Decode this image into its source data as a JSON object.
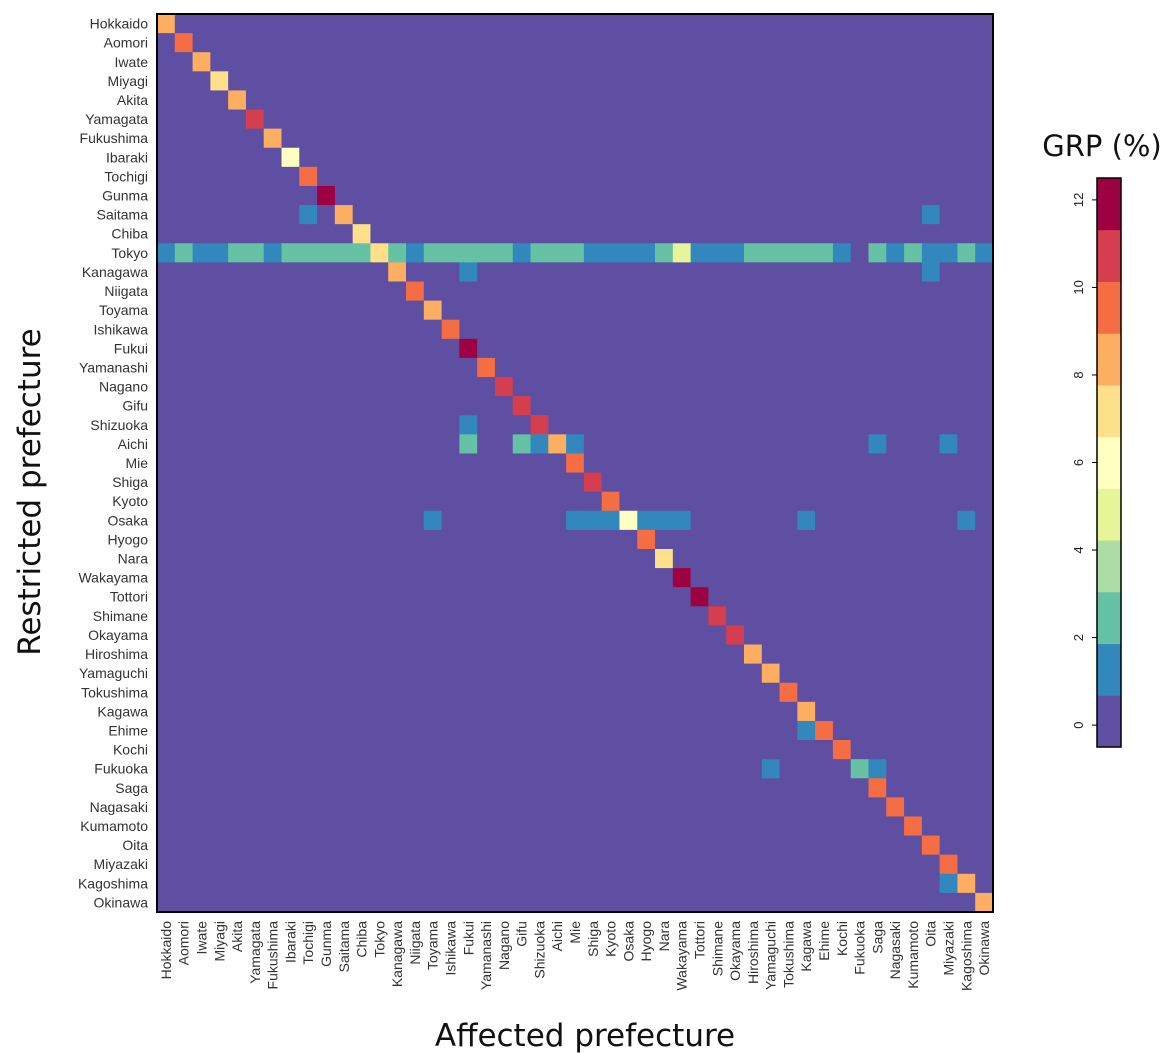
{
  "chart_data": {
    "type": "heatmap",
    "xlabel": "Affected prefecture",
    "ylabel": "Restricted prefecture",
    "colorbar_title": "GRP (%)",
    "colorbar_ticks": [
      0,
      2,
      4,
      6,
      8,
      10,
      12
    ],
    "value_range": [
      -0.5,
      12.5
    ],
    "prefectures": [
      "Hokkaido",
      "Aomori",
      "Iwate",
      "Miyagi",
      "Akita",
      "Yamagata",
      "Fukushima",
      "Ibaraki",
      "Tochigi",
      "Gunma",
      "Saitama",
      "Chiba",
      "Tokyo",
      "Kanagawa",
      "Niigata",
      "Toyama",
      "Ishikawa",
      "Fukui",
      "Yamanashi",
      "Nagano",
      "Gifu",
      "Shizuoka",
      "Aichi",
      "Mie",
      "Shiga",
      "Kyoto",
      "Osaka",
      "Hyogo",
      "Nara",
      "Wakayama",
      "Tottori",
      "Shimane",
      "Okayama",
      "Hiroshima",
      "Yamaguchi",
      "Tokushima",
      "Kagawa",
      "Ehime",
      "Kochi",
      "Fukuoka",
      "Saga",
      "Nagasaki",
      "Kumamoto",
      "Oita",
      "Miyazaki",
      "Kagoshima",
      "Okinawa"
    ],
    "background_value": 0,
    "cells": [
      [
        0,
        0,
        8.5
      ],
      [
        1,
        1,
        9.5
      ],
      [
        2,
        2,
        8.5
      ],
      [
        3,
        3,
        7
      ],
      [
        4,
        4,
        8.5
      ],
      [
        5,
        5,
        10.5
      ],
      [
        6,
        6,
        8.5
      ],
      [
        7,
        7,
        6
      ],
      [
        8,
        8,
        9.5
      ],
      [
        9,
        9,
        12
      ],
      [
        10,
        8,
        1
      ],
      [
        10,
        10,
        8.5
      ],
      [
        10,
        43,
        1
      ],
      [
        11,
        11,
        7
      ],
      [
        12,
        0,
        1
      ],
      [
        12,
        1,
        2
      ],
      [
        12,
        2,
        1
      ],
      [
        12,
        3,
        1
      ],
      [
        12,
        4,
        2
      ],
      [
        12,
        5,
        2
      ],
      [
        12,
        6,
        1
      ],
      [
        12,
        7,
        2
      ],
      [
        12,
        8,
        2
      ],
      [
        12,
        9,
        3
      ],
      [
        12,
        10,
        3
      ],
      [
        12,
        11,
        2
      ],
      [
        12,
        12,
        7
      ],
      [
        12,
        13,
        2
      ],
      [
        12,
        14,
        1
      ],
      [
        12,
        15,
        2
      ],
      [
        12,
        16,
        2
      ],
      [
        12,
        17,
        2
      ],
      [
        12,
        18,
        2
      ],
      [
        12,
        19,
        2
      ],
      [
        12,
        20,
        1
      ],
      [
        12,
        21,
        2
      ],
      [
        12,
        22,
        2
      ],
      [
        12,
        23,
        2
      ],
      [
        12,
        24,
        1
      ],
      [
        12,
        25,
        1
      ],
      [
        12,
        26,
        1
      ],
      [
        12,
        27,
        1
      ],
      [
        12,
        28,
        3
      ],
      [
        12,
        29,
        5
      ],
      [
        12,
        30,
        1
      ],
      [
        12,
        31,
        1
      ],
      [
        12,
        32,
        1
      ],
      [
        12,
        33,
        2
      ],
      [
        12,
        34,
        2
      ],
      [
        12,
        35,
        2
      ],
      [
        12,
        36,
        2
      ],
      [
        12,
        37,
        3
      ],
      [
        12,
        38,
        1
      ],
      [
        12,
        39,
        0
      ],
      [
        12,
        40,
        2
      ],
      [
        12,
        41,
        1
      ],
      [
        12,
        42,
        2
      ],
      [
        12,
        43,
        1
      ],
      [
        12,
        44,
        1
      ],
      [
        12,
        45,
        2
      ],
      [
        12,
        46,
        1
      ],
      [
        13,
        13,
        8.5
      ],
      [
        13,
        17,
        1
      ],
      [
        13,
        43,
        1
      ],
      [
        14,
        14,
        9.5
      ],
      [
        15,
        15,
        8.5
      ],
      [
        16,
        16,
        9.5
      ],
      [
        17,
        17,
        12
      ],
      [
        18,
        18,
        9.5
      ],
      [
        19,
        19,
        10.5
      ],
      [
        20,
        20,
        10.5
      ],
      [
        21,
        17,
        1
      ],
      [
        21,
        21,
        10.5
      ],
      [
        22,
        17,
        2
      ],
      [
        22,
        20,
        2
      ],
      [
        22,
        21,
        1
      ],
      [
        22,
        22,
        8.5
      ],
      [
        22,
        23,
        1
      ],
      [
        22,
        40,
        1
      ],
      [
        22,
        44,
        1
      ],
      [
        23,
        23,
        9.5
      ],
      [
        24,
        24,
        10.5
      ],
      [
        25,
        25,
        9.5
      ],
      [
        26,
        15,
        1
      ],
      [
        26,
        23,
        1
      ],
      [
        26,
        24,
        1
      ],
      [
        26,
        25,
        1
      ],
      [
        26,
        26,
        6
      ],
      [
        26,
        27,
        1
      ],
      [
        26,
        28,
        1
      ],
      [
        26,
        29,
        1
      ],
      [
        26,
        36,
        1
      ],
      [
        26,
        45,
        1
      ],
      [
        27,
        27,
        9.5
      ],
      [
        28,
        28,
        7
      ],
      [
        29,
        29,
        12
      ],
      [
        30,
        30,
        12
      ],
      [
        31,
        31,
        10.5
      ],
      [
        32,
        32,
        10.5
      ],
      [
        33,
        33,
        8.5
      ],
      [
        34,
        34,
        8.5
      ],
      [
        35,
        35,
        9.5
      ],
      [
        36,
        36,
        8.5
      ],
      [
        37,
        36,
        1
      ],
      [
        37,
        37,
        9.5
      ],
      [
        38,
        38,
        9.5
      ],
      [
        39,
        34,
        1
      ],
      [
        39,
        39,
        3
      ],
      [
        39,
        40,
        1
      ],
      [
        40,
        40,
        9.5
      ],
      [
        41,
        41,
        9.5
      ],
      [
        42,
        42,
        9.5
      ],
      [
        43,
        43,
        9.5
      ],
      [
        44,
        44,
        9.5
      ],
      [
        45,
        44,
        1
      ],
      [
        45,
        45,
        8.5
      ],
      [
        46,
        46,
        8.5
      ]
    ],
    "colormap_bins": [
      "#5e4fa2",
      "#3288bd",
      "#66c2a5",
      "#abdda4",
      "#e6f598",
      "#ffffbf",
      "#fee08b",
      "#fdae61",
      "#f46d43",
      "#d53e4f",
      "#9e0142"
    ]
  }
}
